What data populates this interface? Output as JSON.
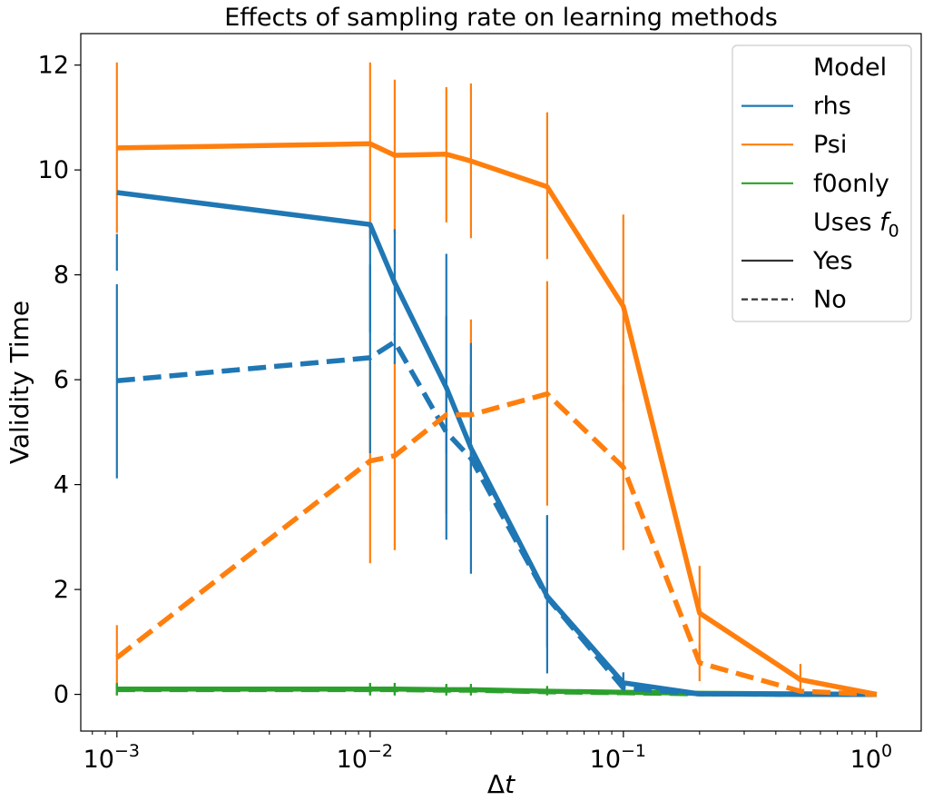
{
  "chart_data": {
    "type": "line",
    "title": "Effects of sampling rate on learning methods",
    "xlabel": "Δt",
    "xlabel_italic_part": "t",
    "ylabel": "Validity Time",
    "xscale": "log",
    "xlim": [
      0.00072,
      1.5
    ],
    "ylim": [
      -0.7,
      12.6
    ],
    "yticks": [
      0,
      2,
      4,
      6,
      8,
      10,
      12
    ],
    "xticks": [
      {
        "value": 0.001,
        "base": "10",
        "exp": "−3"
      },
      {
        "value": 0.01,
        "base": "10",
        "exp": "−2"
      },
      {
        "value": 0.1,
        "base": "10",
        "exp": "−1"
      },
      {
        "value": 1,
        "base": "10",
        "exp": "0"
      }
    ],
    "colors": {
      "rhs": "#1f77b4",
      "Psi": "#ff7f0e",
      "f0only": "#2ca02c"
    },
    "series": [
      {
        "name": "Psi",
        "uses_f0": "Yes",
        "color": "#ff7f0e",
        "x": [
          0.001,
          0.01,
          0.0125,
          0.02,
          0.025,
          0.05,
          0.1,
          0.2,
          0.5,
          1
        ],
        "y": [
          10.42,
          10.5,
          10.28,
          10.3,
          10.17,
          9.68,
          7.4,
          1.55,
          0.28,
          0.0
        ],
        "err_low": [
          8.8,
          8.7,
          8.8,
          9.0,
          8.7,
          8.3,
          5.6,
          0.6,
          0.05,
          0.0
        ],
        "err_high": [
          12.05,
          12.05,
          11.72,
          11.58,
          11.65,
          11.1,
          9.15,
          2.45,
          0.58,
          0.0
        ]
      },
      {
        "name": "Psi",
        "uses_f0": "No",
        "color": "#ff7f0e",
        "x": [
          0.001,
          0.01,
          0.0125,
          0.02,
          0.025,
          0.05,
          0.1,
          0.2,
          0.5,
          1
        ],
        "y": [
          0.7,
          4.45,
          4.55,
          5.33,
          5.33,
          5.73,
          4.33,
          0.6,
          0.06,
          0.0
        ],
        "err_low": [
          0.1,
          2.5,
          2.75,
          3.45,
          3.5,
          3.6,
          2.75,
          0.25,
          0.0,
          0.0
        ],
        "err_high": [
          1.32,
          6.4,
          6.35,
          7.22,
          7.15,
          7.88,
          5.9,
          0.95,
          0.15,
          0.0
        ]
      },
      {
        "name": "rhs",
        "uses_f0": "Yes",
        "color": "#1f77b4",
        "x": [
          0.001,
          0.01,
          0.0125,
          0.02,
          0.025,
          0.05,
          0.1,
          0.2,
          0.5,
          1
        ],
        "y": [
          9.57,
          8.96,
          7.85,
          5.85,
          4.7,
          1.87,
          0.22,
          0.01,
          0.0,
          0.0
        ],
        "err_low": [
          8.08,
          6.9,
          6.85,
          4.6,
          3.5,
          0.4,
          0.05,
          0.0,
          0.0,
          0.0
        ],
        "err_high": [
          8.78,
          8.9,
          8.87,
          7.2,
          5.9,
          3.4,
          0.42,
          0.02,
          0.0,
          0.0
        ]
      },
      {
        "name": "rhs",
        "uses_f0": "No",
        "color": "#1f77b4",
        "x": [
          0.001,
          0.01,
          0.0125,
          0.02,
          0.025,
          0.05,
          0.1,
          0.2,
          0.5,
          1
        ],
        "y": [
          5.98,
          6.42,
          6.72,
          5.0,
          4.5,
          1.85,
          0.12,
          0.01,
          0.0,
          0.0
        ],
        "err_low": [
          4.12,
          4.6,
          6.3,
          2.95,
          2.3,
          0.9,
          0.02,
          0.0,
          0.0,
          0.0
        ],
        "err_high": [
          7.82,
          8.2,
          6.9,
          8.4,
          6.7,
          3.42,
          0.4,
          0.02,
          0.0,
          0.0
        ]
      },
      {
        "name": "f0only",
        "uses_f0": "Yes",
        "color": "#2ca02c",
        "x": [
          0.001,
          0.01,
          0.0125,
          0.02,
          0.025,
          0.05,
          0.1,
          0.2,
          0.5,
          1
        ],
        "y": [
          0.1,
          0.1,
          0.1,
          0.09,
          0.09,
          0.06,
          0.04,
          0.02,
          0.01,
          0.0
        ],
        "err_low": [
          -0.02,
          -0.02,
          -0.02,
          -0.02,
          -0.02,
          -0.02,
          -0.01,
          0.0,
          0.0,
          0.0
        ],
        "err_high": [
          0.22,
          0.22,
          0.22,
          0.2,
          0.2,
          0.16,
          0.1,
          0.05,
          0.02,
          0.0
        ]
      },
      {
        "name": "f0only",
        "uses_f0": "No",
        "color": "#2ca02c",
        "x": [
          0.001,
          0.01,
          0.0125,
          0.02,
          0.025,
          0.05,
          0.1,
          0.2,
          0.5,
          1
        ],
        "y": [
          0.09,
          0.09,
          0.09,
          0.08,
          0.08,
          0.05,
          0.03,
          0.01,
          0.0,
          0.0
        ],
        "err_low": [
          -0.02,
          -0.02,
          -0.02,
          -0.02,
          -0.02,
          -0.02,
          -0.01,
          0.0,
          0.0,
          0.0
        ],
        "err_high": [
          0.2,
          0.2,
          0.2,
          0.18,
          0.18,
          0.14,
          0.08,
          0.04,
          0.01,
          0.0
        ]
      }
    ],
    "legend": {
      "position": "top-right",
      "entries": [
        {
          "label": "Model",
          "kind": "header"
        },
        {
          "label": "rhs",
          "kind": "line",
          "color": "#1f77b4",
          "dash": "solid"
        },
        {
          "label": "Psi",
          "kind": "line",
          "color": "#ff7f0e",
          "dash": "solid"
        },
        {
          "label": "f0only",
          "kind": "line",
          "color": "#2ca02c",
          "dash": "solid"
        },
        {
          "label": "Uses ",
          "sub": "f",
          "subscript": "0",
          "kind": "header"
        },
        {
          "label": "Yes",
          "kind": "line",
          "color": "#333333",
          "dash": "solid"
        },
        {
          "label": "No",
          "kind": "line",
          "color": "#333333",
          "dash": "dashed"
        }
      ]
    }
  }
}
